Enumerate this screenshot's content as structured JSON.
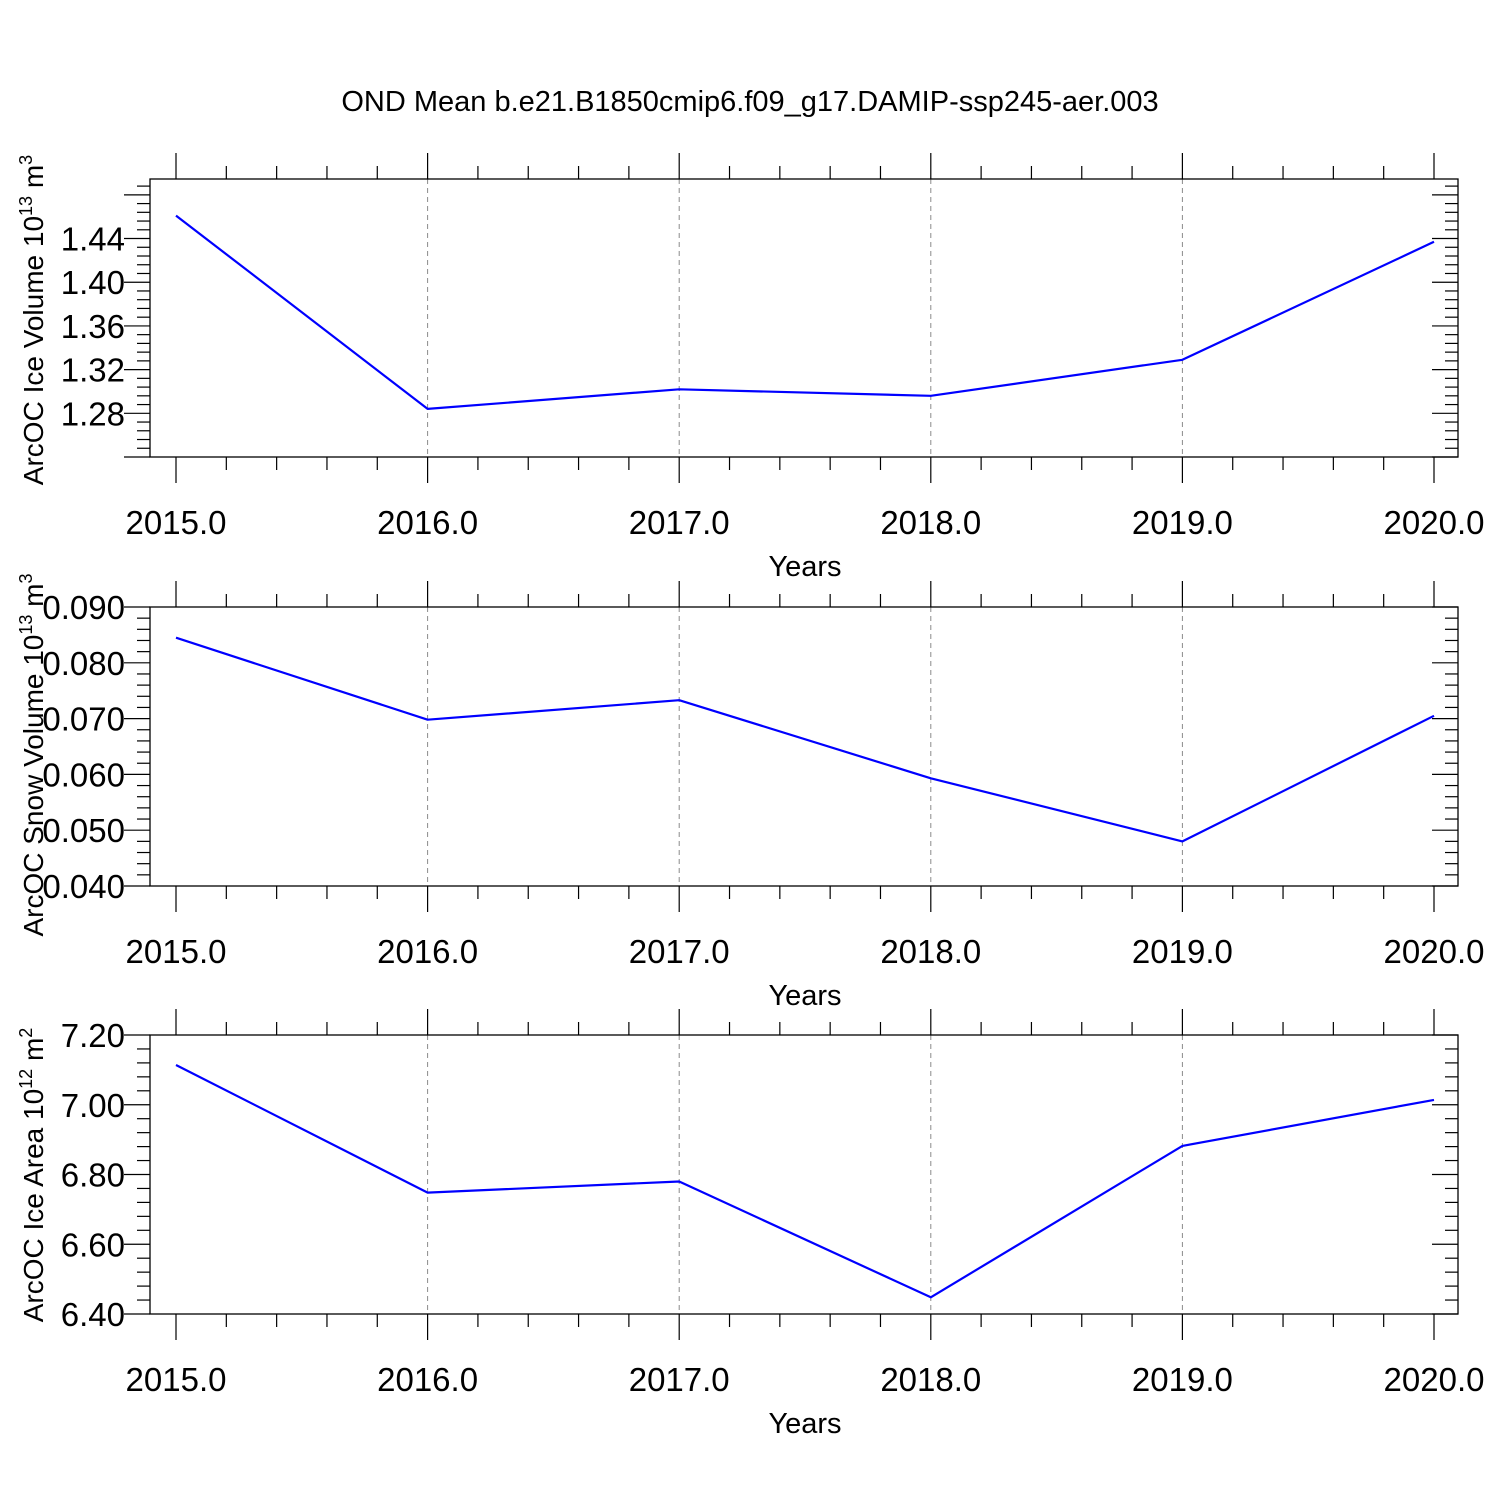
{
  "title": "OND Mean b.e21.B1850cmip6.f09_g17.DAMIP-ssp245-aer.003",
  "colors": {
    "series": "#0000ff",
    "grid": "#8a8a8a",
    "axes": "#000000"
  },
  "chart_data": [
    {
      "type": "line",
      "title": "",
      "xlabel": "Years",
      "ylabel": {
        "text": "ArcOC Ice Volume 10",
        "exponent": "13",
        "unit": "m",
        "unit_exponent": "3"
      },
      "xlim": [
        2015,
        2020
      ],
      "ylim": [
        1.24,
        1.4945
      ],
      "x_ticks": [
        2015,
        2016,
        2017,
        2018,
        2019,
        2020
      ],
      "x_tick_labels": [
        "2015.0",
        "2016.0",
        "2017.0",
        "2018.0",
        "2019.0",
        "2020.0"
      ],
      "y_ticks": [
        1.28,
        1.32,
        1.36,
        1.4,
        1.44
      ],
      "y_tick_labels": [
        "1.28",
        "1.32",
        "1.36",
        "1.40",
        "1.44"
      ],
      "grid": "vertical dashed at major x ticks",
      "x": [
        2015,
        2016,
        2017,
        2018,
        2019,
        2020
      ],
      "y": [
        1.461,
        1.284,
        1.302,
        1.296,
        1.329,
        1.437
      ]
    },
    {
      "type": "line",
      "title": "",
      "xlabel": "Years",
      "ylabel": {
        "text": "ArcOC Snow Volume 10",
        "exponent": "13",
        "unit": "m",
        "unit_exponent": "3"
      },
      "xlim": [
        2015,
        2020
      ],
      "ylim": [
        0.04,
        0.09
      ],
      "x_ticks": [
        2015,
        2016,
        2017,
        2018,
        2019,
        2020
      ],
      "x_tick_labels": [
        "2015.0",
        "2016.0",
        "2017.0",
        "2018.0",
        "2019.0",
        "2020.0"
      ],
      "y_ticks": [
        0.04,
        0.05,
        0.06,
        0.07,
        0.08,
        0.09
      ],
      "y_tick_labels": [
        "0.040",
        "0.050",
        "0.060",
        "0.070",
        "0.080",
        "0.090"
      ],
      "grid": "vertical dashed at major x ticks",
      "x": [
        2015,
        2016,
        2017,
        2018,
        2019,
        2020
      ],
      "y": [
        0.0845,
        0.0698,
        0.0733,
        0.0593,
        0.048,
        0.0705
      ]
    },
    {
      "type": "line",
      "title": "",
      "xlabel": "Years",
      "ylabel": {
        "text": "ArcOC Ice Area 10",
        "exponent": "12",
        "unit": "m",
        "unit_exponent": "2"
      },
      "xlim": [
        2015,
        2020
      ],
      "ylim": [
        6.4,
        7.2
      ],
      "x_ticks": [
        2015,
        2016,
        2017,
        2018,
        2019,
        2020
      ],
      "x_tick_labels": [
        "2015.0",
        "2016.0",
        "2017.0",
        "2018.0",
        "2019.0",
        "2020.0"
      ],
      "y_ticks": [
        6.4,
        6.6,
        6.8,
        7.0,
        7.2
      ],
      "y_tick_labels": [
        "6.40",
        "6.60",
        "6.80",
        "7.00",
        "7.20"
      ],
      "grid": "vertical dashed at major x ticks",
      "x": [
        2015,
        2016,
        2017,
        2018,
        2019,
        2020
      ],
      "y": [
        7.114,
        6.748,
        6.78,
        6.448,
        6.882,
        7.014
      ]
    }
  ]
}
